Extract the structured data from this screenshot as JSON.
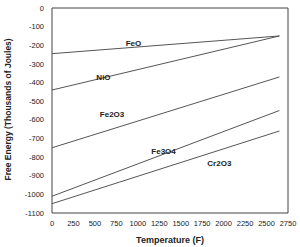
{
  "chart_data": {
    "type": "line",
    "x_label": "Temperature (F)",
    "y_label": "Free Energy (Thousands of Joules)",
    "x": [
      0,
      2650
    ],
    "series": [
      {
        "name": "FeO",
        "color": "#555555",
        "values": [
          -245,
          -150
        ]
      },
      {
        "name": "NiO",
        "color": "#555555",
        "values": [
          -440,
          -150
        ]
      },
      {
        "name": "Fe2O3",
        "color": "#555555",
        "values": [
          -750,
          -370
        ]
      },
      {
        "name": "Fe3O4",
        "color": "#555555",
        "values": [
          -1010,
          -550
        ]
      },
      {
        "name": "Cr2O3",
        "color": "#555555",
        "values": [
          -1050,
          -660
        ]
      }
    ],
    "annotations": [
      {
        "text": "FeO",
        "x": 950,
        "y": -190
      },
      {
        "text": "NiO",
        "x": 600,
        "y": -370
      },
      {
        "text": "Fe2O3",
        "x": 700,
        "y": -570
      },
      {
        "text": "Fe3O4",
        "x": 1300,
        "y": -770
      },
      {
        "text": "Cr2O3",
        "x": 1950,
        "y": -830
      }
    ],
    "xlim": [
      0,
      2750
    ],
    "xticks": [
      0,
      250,
      500,
      750,
      1000,
      1250,
      1500,
      1750,
      2000,
      2250,
      2500,
      2750
    ],
    "ylim": [
      -1100,
      0
    ],
    "yticks": [
      -1100,
      -1000,
      -900,
      -800,
      -700,
      -600,
      -500,
      -400,
      -300,
      -200,
      -100,
      0
    ],
    "grid": false
  }
}
